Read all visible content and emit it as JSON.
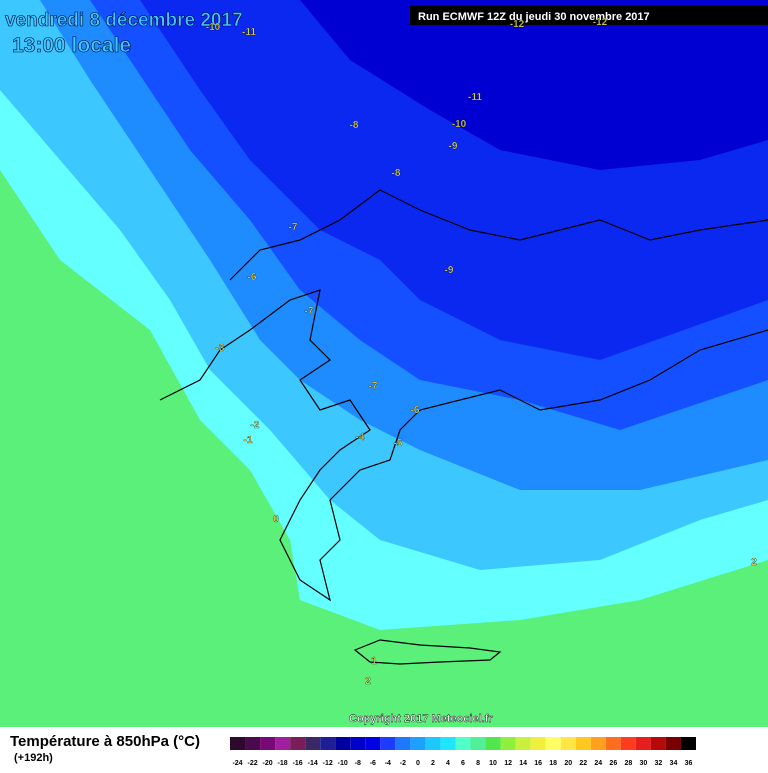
{
  "header": {
    "title": "vendredi 8 décembre 2017",
    "subtitle": "13:00 locale",
    "run": "Run ECMWF 12Z du jeudi 30 novembre 2017"
  },
  "map": {
    "contour_labels": [
      "-10",
      "-11",
      "-12",
      "-12",
      "-11",
      "-8",
      "-10",
      "-9",
      "-8",
      "-7",
      "-9",
      "-6",
      "-7",
      "-3",
      "-7",
      "-6",
      "-2",
      "-1",
      "-4",
      "-5",
      "0",
      "2",
      "1",
      "2"
    ],
    "copyright": "Copyright 2017 Meteociel.fr"
  },
  "legend": {
    "title": "Température à 850hPa (°C)",
    "lead": "(+192h)",
    "ticks": [
      -24,
      -22,
      -20,
      -18,
      -16,
      -14,
      -12,
      -10,
      -8,
      -6,
      -4,
      -2,
      0,
      2,
      4,
      6,
      8,
      10,
      12,
      14,
      16,
      18,
      20,
      22,
      24,
      26,
      28,
      30,
      32,
      34,
      36
    ],
    "colors": [
      "#2d0a2d",
      "#4b0a4b",
      "#780a78",
      "#a01ea0",
      "#7a1e5a",
      "#3c2864",
      "#1e1e96",
      "#0000a0",
      "#0000c8",
      "#0000e6",
      "#1e3cff",
      "#1e78ff",
      "#1ea0ff",
      "#1ec8ff",
      "#1ee6ff",
      "#50ffc8",
      "#50f096",
      "#50e650",
      "#8cf03c",
      "#c8f03c",
      "#f0f03c",
      "#ffff64",
      "#ffe646",
      "#ffc81e",
      "#ffa01e",
      "#ff6e1e",
      "#ff3c1e",
      "#e61e1e",
      "#b40a0a",
      "#780000",
      "#000000"
    ]
  }
}
